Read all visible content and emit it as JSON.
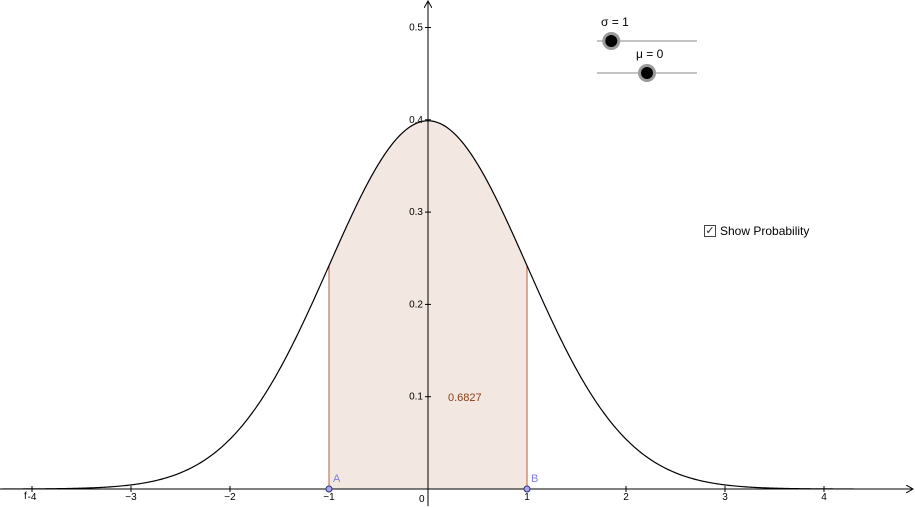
{
  "sliders": [
    {
      "symbol": "σ",
      "value": 1,
      "label": "σ = 1",
      "min": 0.5,
      "max": 4
    },
    {
      "symbol": "μ",
      "value": 0,
      "label": "μ = 0",
      "min": -3,
      "max": 3
    }
  ],
  "checkbox": {
    "label": "Show Probability",
    "checked": true,
    "check_glyph": "✓"
  },
  "points": [
    {
      "name": "A",
      "x": -1,
      "y": 0
    },
    {
      "name": "B",
      "x": 1,
      "y": 0
    }
  ],
  "probability": {
    "text": "0.6827",
    "from": -1,
    "to": 1
  },
  "function_label": "f",
  "axes": {
    "x_ticks": [
      {
        "value": -4,
        "label": "-4"
      },
      {
        "value": -3,
        "label": "−3"
      },
      {
        "value": -2,
        "label": "−2"
      },
      {
        "value": -1,
        "label": "−1"
      },
      {
        "value": 1,
        "label": "1"
      },
      {
        "value": 2,
        "label": "2"
      },
      {
        "value": 3,
        "label": "3"
      },
      {
        "value": 4,
        "label": "4"
      }
    ],
    "y_ticks": [
      {
        "value": 0.1,
        "label": "0.1"
      },
      {
        "value": 0.2,
        "label": "0.2"
      },
      {
        "value": 0.3,
        "label": "0.3"
      },
      {
        "value": 0.4,
        "label": "0.4"
      },
      {
        "value": 0.5,
        "label": "0.5"
      }
    ],
    "origin_label": "0"
  },
  "colors": {
    "curve": "#000000",
    "fill": "#f3e7e1",
    "fill_edge": "#b5603c",
    "point": "#7f7fe0",
    "probability_text": "#8a3c14"
  }
}
